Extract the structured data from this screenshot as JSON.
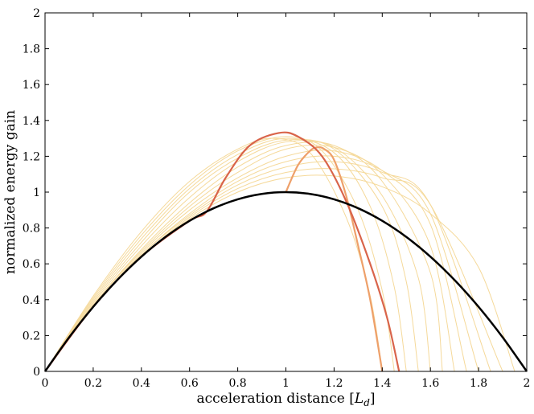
{
  "chart_data": {
    "type": "line",
    "title": "",
    "xlabel": {
      "prefix": "acceleration distance [",
      "symbol": "L",
      "subscript": "d",
      "suffix": "]"
    },
    "ylabel": "normalized energy gain",
    "xlim": [
      0,
      2
    ],
    "ylim": [
      0,
      2
    ],
    "x_ticks": [
      "0",
      "0.2",
      "0.4",
      "0.6",
      "0.8",
      "1",
      "1.2",
      "1.4",
      "1.6",
      "1.8",
      "2"
    ],
    "y_ticks": [
      "0",
      "0.2",
      "0.4",
      "0.6",
      "0.8",
      "1",
      "1.2",
      "1.4",
      "1.6",
      "1.8",
      "2"
    ],
    "grid": false,
    "legend": "none",
    "colors": {
      "main": "#000000",
      "family": "#f5d99a",
      "highlight_1": "#d9644a",
      "highlight_2": "#eea06a"
    },
    "series": [
      {
        "role": "main",
        "x": [
          0,
          0.1,
          0.2,
          0.3,
          0.4,
          0.5,
          0.6,
          0.7,
          0.8,
          0.9,
          1.0,
          1.1,
          1.2,
          1.3,
          1.4,
          1.5,
          1.6,
          1.7,
          1.8,
          1.9,
          2.0
        ],
        "y": [
          0,
          0.19,
          0.36,
          0.51,
          0.64,
          0.75,
          0.84,
          0.91,
          0.96,
          0.99,
          1.0,
          0.99,
          0.96,
          0.91,
          0.84,
          0.75,
          0.64,
          0.51,
          0.36,
          0.19,
          0
        ]
      },
      {
        "role": "highlight_1",
        "x": [
          0,
          0.2,
          0.4,
          0.6,
          0.67,
          0.75,
          0.85,
          0.97,
          1.05,
          1.15,
          1.25,
          1.35,
          1.42,
          1.47
        ],
        "y": [
          0,
          0.36,
          0.64,
          0.84,
          0.89,
          1.08,
          1.26,
          1.33,
          1.31,
          1.2,
          0.95,
          0.6,
          0.3,
          0
        ]
      },
      {
        "role": "highlight_2",
        "x": [
          1.0,
          1.05,
          1.1,
          1.13,
          1.16,
          1.2,
          1.25,
          1.3,
          1.35,
          1.4
        ],
        "y": [
          1.0,
          1.15,
          1.23,
          1.25,
          1.24,
          1.18,
          0.98,
          0.7,
          0.4,
          0
        ]
      }
    ],
    "family_curves": [
      {
        "x": [
          0,
          0.2,
          0.4,
          0.6,
          0.8,
          0.95,
          1.1,
          1.25,
          1.35,
          1.4
        ],
        "y": [
          0,
          0.42,
          0.78,
          1.06,
          1.24,
          1.3,
          1.22,
          0.86,
          0.42,
          0
        ]
      },
      {
        "x": [
          0,
          0.2,
          0.4,
          0.6,
          0.8,
          1.0,
          1.15,
          1.3,
          1.4,
          1.45
        ],
        "y": [
          0,
          0.41,
          0.76,
          1.04,
          1.23,
          1.31,
          1.23,
          0.9,
          0.45,
          0
        ]
      },
      {
        "x": [
          0,
          0.2,
          0.4,
          0.6,
          0.8,
          1.0,
          1.2,
          1.35,
          1.45,
          1.5
        ],
        "y": [
          0,
          0.4,
          0.74,
          1.02,
          1.21,
          1.3,
          1.22,
          0.92,
          0.47,
          0
        ]
      },
      {
        "x": [
          0,
          0.2,
          0.4,
          0.6,
          0.8,
          1.0,
          1.2,
          1.4,
          1.5,
          1.55
        ],
        "y": [
          0,
          0.39,
          0.72,
          1.0,
          1.19,
          1.29,
          1.24,
          0.92,
          0.5,
          0
        ]
      },
      {
        "x": [
          0,
          0.2,
          0.4,
          0.6,
          0.8,
          1.0,
          1.2,
          1.4,
          1.55,
          1.6
        ],
        "y": [
          0,
          0.38,
          0.7,
          0.97,
          1.17,
          1.28,
          1.25,
          0.98,
          0.52,
          0
        ]
      },
      {
        "x": [
          0,
          0.2,
          0.4,
          0.6,
          0.8,
          1.0,
          1.2,
          1.4,
          1.6,
          1.65
        ],
        "y": [
          0,
          0.37,
          0.68,
          0.94,
          1.14,
          1.26,
          1.26,
          1.06,
          0.55,
          0
        ]
      },
      {
        "x": [
          0,
          0.2,
          0.4,
          0.6,
          0.8,
          1.0,
          1.2,
          1.4,
          1.6,
          1.7
        ],
        "y": [
          0,
          0.37,
          0.67,
          0.92,
          1.11,
          1.24,
          1.25,
          1.1,
          0.7,
          0
        ]
      },
      {
        "x": [
          0,
          0.2,
          0.4,
          0.6,
          0.8,
          1.0,
          1.2,
          1.4,
          1.6,
          1.75
        ],
        "y": [
          0,
          0.36,
          0.66,
          0.9,
          1.08,
          1.2,
          1.23,
          1.12,
          0.82,
          0
        ]
      },
      {
        "x": [
          0,
          0.2,
          0.4,
          0.6,
          0.8,
          1.0,
          1.2,
          1.4,
          1.6,
          1.8
        ],
        "y": [
          0,
          0.36,
          0.65,
          0.88,
          1.06,
          1.17,
          1.2,
          1.12,
          0.88,
          0
        ]
      },
      {
        "x": [
          0,
          0.2,
          0.4,
          0.6,
          0.8,
          1.0,
          1.2,
          1.4,
          1.6,
          1.85
        ],
        "y": [
          0,
          0.36,
          0.65,
          0.87,
          1.04,
          1.14,
          1.17,
          1.11,
          0.93,
          0
        ]
      },
      {
        "x": [
          0,
          0.2,
          0.4,
          0.6,
          0.8,
          1.0,
          1.2,
          1.4,
          1.6,
          1.9
        ],
        "y": [
          0,
          0.36,
          0.64,
          0.86,
          1.02,
          1.11,
          1.13,
          1.08,
          0.93,
          0
        ]
      },
      {
        "x": [
          0,
          0.2,
          0.4,
          0.6,
          0.8,
          1.0,
          1.2,
          1.4,
          1.6,
          1.8,
          1.95
        ],
        "y": [
          0,
          0.36,
          0.64,
          0.85,
          1.0,
          1.08,
          1.09,
          1.03,
          0.88,
          0.58,
          0
        ]
      }
    ]
  }
}
